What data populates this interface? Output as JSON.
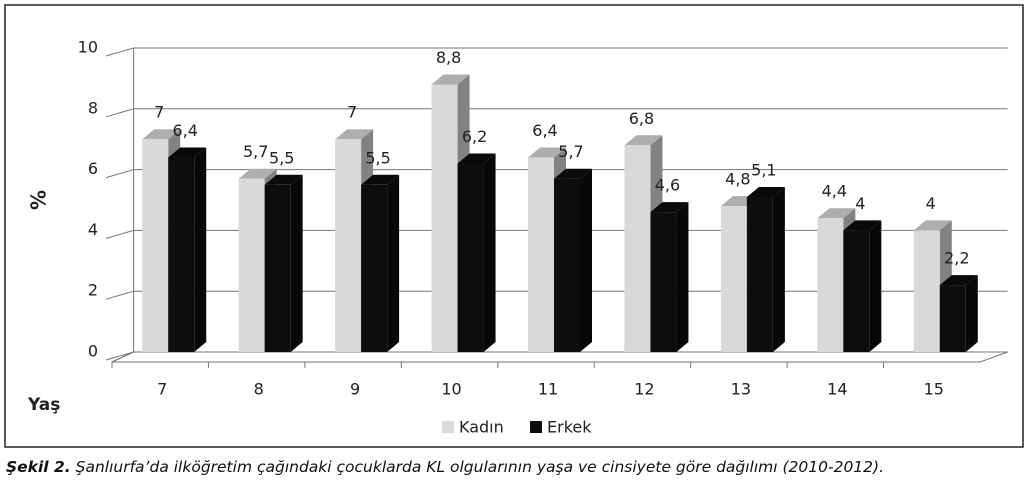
{
  "chart_data": {
    "type": "bar3d",
    "y_label": "%",
    "x_label": "Yaş",
    "categories": [
      "7",
      "8",
      "9",
      "10",
      "11",
      "12",
      "13",
      "14",
      "15"
    ],
    "series": [
      {
        "name": "Kadın",
        "color": "#d9d9d9",
        "values": [
          7,
          5.7,
          7,
          8.8,
          6.4,
          6.8,
          4.8,
          4.4,
          4
        ],
        "value_labels": [
          "7",
          "5,7",
          "7",
          "8,8",
          "6,4",
          "6,8",
          "4,8",
          "4,4",
          "4"
        ]
      },
      {
        "name": "Erkek",
        "color": "#0d0d0d",
        "values": [
          6.4,
          5.5,
          5.5,
          6.2,
          5.7,
          4.6,
          5.1,
          4,
          2.2
        ],
        "value_labels": [
          "6,4",
          "5,5",
          "5,5",
          "6,2",
          "5,7",
          "4,6",
          "5,1",
          "4",
          "2,2"
        ]
      }
    ],
    "ylim": [
      0,
      10
    ],
    "yticks": [
      0,
      2,
      4,
      6,
      8,
      10
    ],
    "grid": true,
    "legend": "bottom",
    "caption_label": "Şekil 2.",
    "caption": "Şanlıurfa’da ilköğretim çağındaki çocuklarda KL olgularının yaşa ve cinsiyete göre dağılımı (2010-2012)."
  }
}
